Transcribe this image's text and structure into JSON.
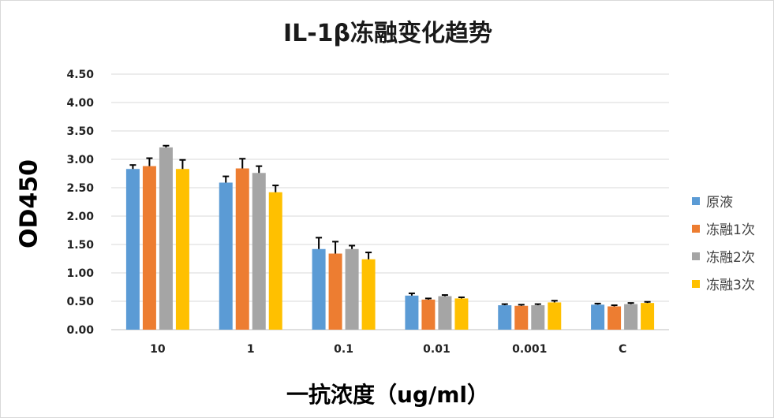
{
  "chart_data": {
    "type": "bar",
    "title": "IL-1β冻融变化趋势",
    "xlabel": "一抗浓度（ug/ml）",
    "ylabel": "OD450",
    "categories": [
      "10",
      "1",
      "0.1",
      "0.01",
      "0.001",
      "C"
    ],
    "yticks": [
      "0.00",
      "0.50",
      "1.00",
      "1.50",
      "2.00",
      "2.50",
      "3.00",
      "3.50",
      "4.00",
      "4.50"
    ],
    "ylim": [
      0,
      4.5
    ],
    "grid": true,
    "legend_position": "right",
    "series": [
      {
        "name": "原液",
        "color": "#5B9BD5",
        "values": [
          2.83,
          2.59,
          1.42,
          0.6,
          0.43,
          0.44
        ],
        "errors": [
          0.07,
          0.11,
          0.2,
          0.04,
          0.02,
          0.02
        ]
      },
      {
        "name": "冻融1次",
        "color": "#ED7D31",
        "values": [
          2.88,
          2.84,
          1.34,
          0.53,
          0.42,
          0.41
        ],
        "errors": [
          0.14,
          0.17,
          0.21,
          0.02,
          0.02,
          0.02
        ]
      },
      {
        "name": "冻融2次",
        "color": "#A5A5A5",
        "values": [
          3.21,
          2.76,
          1.42,
          0.59,
          0.43,
          0.45
        ],
        "errors": [
          0.03,
          0.12,
          0.06,
          0.02,
          0.02,
          0.02
        ]
      },
      {
        "name": "冻融3次",
        "color": "#FFC000",
        "values": [
          2.83,
          2.42,
          1.24,
          0.55,
          0.48,
          0.47
        ],
        "errors": [
          0.16,
          0.12,
          0.12,
          0.02,
          0.03,
          0.02
        ]
      }
    ]
  }
}
